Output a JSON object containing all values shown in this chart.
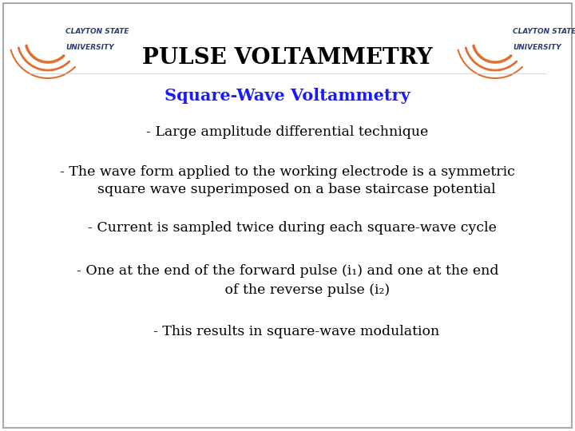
{
  "title": "PULSE VOLTAMMETRY",
  "subtitle": "Square-Wave Voltammetry",
  "bullet1": "- Large amplitude differential technique",
  "bullet2_line1": "- The wave form applied to the working electrode is a symmetric",
  "bullet2_line2": "    square wave superimposed on a base staircase potential",
  "bullet3": "  - Current is sampled twice during each square-wave cycle",
  "bullet4_line1": "- One at the end of the forward pulse (i₁) and one at the end",
  "bullet4_line2": "         of the reverse pulse (i₂)",
  "bullet5": "    - This results in square-wave modulation",
  "title_color": "#000000",
  "subtitle_color": "#1a1aff",
  "bullet_color": "#000000",
  "bg_color": "#FFFFFF",
  "title_fontsize": 20,
  "subtitle_fontsize": 15,
  "bullet_fontsize": 12.5,
  "logo_arc_color": "#E07030",
  "logo_text_color": "#2B4070"
}
